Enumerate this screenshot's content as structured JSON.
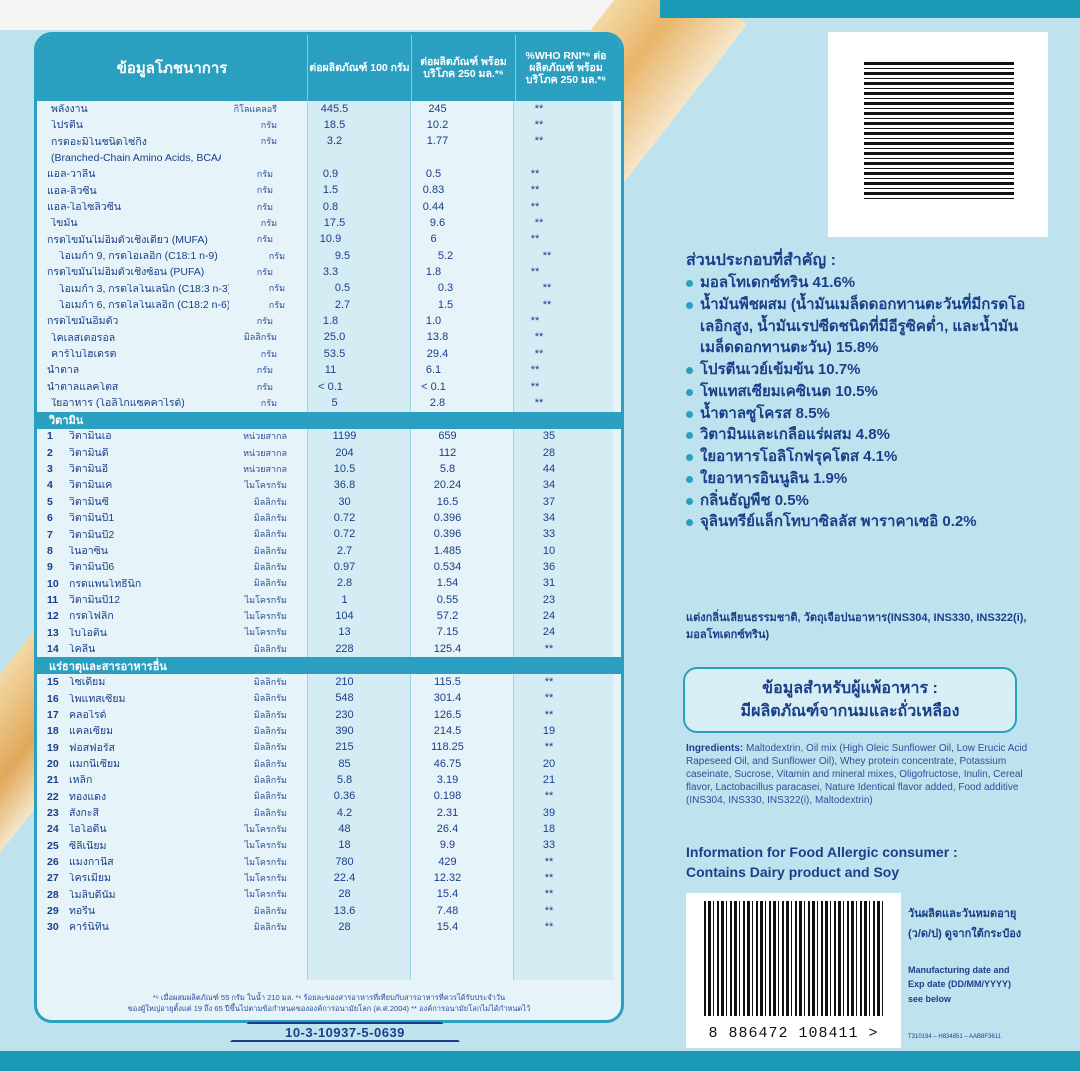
{
  "nutrition": {
    "header": {
      "title": "ข้อมูลโภชนาการ",
      "col1": "ต่อผลิตภัณฑ์ 100 กรัม",
      "col2": "ต่อผลิตภัณฑ์ พร้อมบริโภค 250 มล.*⁶",
      "col3": "%WHO RNI*⁶ ต่อผลิตภัณฑ์ พร้อมบริโภค 250 มล.*⁶"
    },
    "macros": [
      {
        "name": "พลังงาน",
        "unit": "กิโลแคลอรี",
        "v1": "445.5",
        "v2": "245",
        "v3": "**",
        "indent": 0
      },
      {
        "name": "โปรตีน",
        "unit": "กรัม",
        "v1": "18.5",
        "v2": "10.2",
        "v3": "**",
        "indent": 0
      },
      {
        "name": "กรดอะมิโนชนิดโซ่กิ่ง",
        "unit": "กรัม",
        "v1": "3.2",
        "v2": "1.77",
        "v3": "**",
        "indent": 0
      },
      {
        "name": "(Branched-Chain Amino Acids, BCAAs)",
        "unit": "",
        "v1": "",
        "v2": "",
        "v3": "",
        "indent": 0
      },
      {
        "name": "แอล-วาลีน",
        "unit": "กรัม",
        "v1": "0.9",
        "v2": "0.5",
        "v3": "**",
        "indent": 1
      },
      {
        "name": "แอล-ลิวซีน",
        "unit": "กรัม",
        "v1": "1.5",
        "v2": "0.83",
        "v3": "**",
        "indent": 1
      },
      {
        "name": "แอล-ไอโซลิวซีน",
        "unit": "กรัม",
        "v1": "0.8",
        "v2": "0.44",
        "v3": "**",
        "indent": 1
      },
      {
        "name": "ไขมัน",
        "unit": "กรัม",
        "v1": "17.5",
        "v2": "9.6",
        "v3": "**",
        "indent": 0
      },
      {
        "name": "กรดไขมันไม่อิ่มตัวเชิงเดี่ยว (MUFA)",
        "unit": "กรัม",
        "v1": "10.9",
        "v2": "6",
        "v3": "**",
        "indent": 1
      },
      {
        "name": "โอเมก้า 9, กรดโอเลอิก (C18:1 n-9)",
        "unit": "กรัม",
        "v1": "9.5",
        "v2": "5.2",
        "v3": "**",
        "indent": 2
      },
      {
        "name": "กรดไขมันไม่อิ่มตัวเชิงซ้อน (PUFA)",
        "unit": "กรัม",
        "v1": "3.3",
        "v2": "1.8",
        "v3": "**",
        "indent": 1
      },
      {
        "name": "โอเมก้า 3, กรดไลโนเลนิก (C18:3 n-3)",
        "unit": "กรัม",
        "v1": "0.5",
        "v2": "0.3",
        "v3": "**",
        "indent": 2
      },
      {
        "name": "โอเมก้า 6, กรดไลโนเลอิก (C18:2 n-6)",
        "unit": "กรัม",
        "v1": "2.7",
        "v2": "1.5",
        "v3": "**",
        "indent": 2
      },
      {
        "name": "กรดไขมันอิ่มตัว",
        "unit": "กรัม",
        "v1": "1.8",
        "v2": "1.0",
        "v3": "**",
        "indent": 1
      },
      {
        "name": "โคเลสเตอรอล",
        "unit": "มิลลิกรัม",
        "v1": "25.0",
        "v2": "13.8",
        "v3": "**",
        "indent": 0
      },
      {
        "name": "คาร์โบไฮเดรต",
        "unit": "กรัม",
        "v1": "53.5",
        "v2": "29.4",
        "v3": "**",
        "indent": 0
      },
      {
        "name": "น้ำตาล",
        "unit": "กรัม",
        "v1": "11",
        "v2": "6.1",
        "v3": "**",
        "indent": 1
      },
      {
        "name": "น้ำตาลแลคโตส",
        "unit": "กรัม",
        "v1": "< 0.1",
        "v2": "< 0.1",
        "v3": "**",
        "indent": 1
      },
      {
        "name": "ใยอาหาร (โอลิโกแซคคาไรด์)",
        "unit": "กรัม",
        "v1": "5",
        "v2": "2.8",
        "v3": "**",
        "indent": 0
      }
    ],
    "vitamins_title": "วิตามิน",
    "vitamins": [
      {
        "num": "1",
        "name": "วิตามินเอ",
        "unit": "หน่วยสากล",
        "v1": "1199",
        "v2": "659",
        "v3": "35"
      },
      {
        "num": "2",
        "name": "วิตามินดี",
        "unit": "หน่วยสากล",
        "v1": "204",
        "v2": "112",
        "v3": "28"
      },
      {
        "num": "3",
        "name": "วิตามินอี",
        "unit": "หน่วยสากล",
        "v1": "10.5",
        "v2": "5.8",
        "v3": "44"
      },
      {
        "num": "4",
        "name": "วิตามินเค",
        "unit": "ไมโครกรัม",
        "v1": "36.8",
        "v2": "20.24",
        "v3": "34"
      },
      {
        "num": "5",
        "name": "วิตามินซี",
        "unit": "มิลลิกรัม",
        "v1": "30",
        "v2": "16.5",
        "v3": "37"
      },
      {
        "num": "6",
        "name": "วิตามินบี1",
        "unit": "มิลลิกรัม",
        "v1": "0.72",
        "v2": "0.396",
        "v3": "34"
      },
      {
        "num": "7",
        "name": "วิตามินบี2",
        "unit": "มิลลิกรัม",
        "v1": "0.72",
        "v2": "0.396",
        "v3": "33"
      },
      {
        "num": "8",
        "name": "ไนอาซิน",
        "unit": "มิลลิกรัม",
        "v1": "2.7",
        "v2": "1.485",
        "v3": "10"
      },
      {
        "num": "9",
        "name": "วิตามินบี6",
        "unit": "มิลลิกรัม",
        "v1": "0.97",
        "v2": "0.534",
        "v3": "36"
      },
      {
        "num": "10",
        "name": "กรดแพนโทธีนิก",
        "unit": "มิลลิกรัม",
        "v1": "2.8",
        "v2": "1.54",
        "v3": "31"
      },
      {
        "num": "11",
        "name": "วิตามินบี12",
        "unit": "ไมโครกรัม",
        "v1": "1",
        "v2": "0.55",
        "v3": "23"
      },
      {
        "num": "12",
        "name": "กรดโฟลิก",
        "unit": "ไมโครกรัม",
        "v1": "104",
        "v2": "57.2",
        "v3": "24"
      },
      {
        "num": "13",
        "name": "ไบโอติน",
        "unit": "ไมโครกรัม",
        "v1": "13",
        "v2": "7.15",
        "v3": "24"
      },
      {
        "num": "14",
        "name": "โคลีน",
        "unit": "มิลลิกรัม",
        "v1": "228",
        "v2": "125.4",
        "v3": "**"
      }
    ],
    "minerals_title": "แร่ธาตุและสารอาหารอื่น",
    "minerals": [
      {
        "num": "15",
        "name": "โซเดียม",
        "unit": "มิลลิกรัม",
        "v1": "210",
        "v2": "115.5",
        "v3": "**"
      },
      {
        "num": "16",
        "name": "โพแทสเซียม",
        "unit": "มิลลิกรัม",
        "v1": "548",
        "v2": "301.4",
        "v3": "**"
      },
      {
        "num": "17",
        "name": "คลอไรด์",
        "unit": "มิลลิกรัม",
        "v1": "230",
        "v2": "126.5",
        "v3": "**"
      },
      {
        "num": "18",
        "name": "แคลเซียม",
        "unit": "มิลลิกรัม",
        "v1": "390",
        "v2": "214.5",
        "v3": "19"
      },
      {
        "num": "19",
        "name": "ฟอสฟอรัส",
        "unit": "มิลลิกรัม",
        "v1": "215",
        "v2": "118.25",
        "v3": "**"
      },
      {
        "num": "20",
        "name": "แมกนีเซียม",
        "unit": "มิลลิกรัม",
        "v1": "85",
        "v2": "46.75",
        "v3": "20"
      },
      {
        "num": "21",
        "name": "เหล็ก",
        "unit": "มิลลิกรัม",
        "v1": "5.8",
        "v2": "3.19",
        "v3": "21"
      },
      {
        "num": "22",
        "name": "ทองแดง",
        "unit": "มิลลิกรัม",
        "v1": "0.36",
        "v2": "0.198",
        "v3": "**"
      },
      {
        "num": "23",
        "name": "สังกะสี",
        "unit": "มิลลิกรัม",
        "v1": "4.2",
        "v2": "2.31",
        "v3": "39"
      },
      {
        "num": "24",
        "name": "ไอโอดีน",
        "unit": "ไมโครกรัม",
        "v1": "48",
        "v2": "26.4",
        "v3": "18"
      },
      {
        "num": "25",
        "name": "ซีลีเนียม",
        "unit": "ไมโครกรัม",
        "v1": "18",
        "v2": "9.9",
        "v3": "33"
      },
      {
        "num": "26",
        "name": "แมงกานีส",
        "unit": "ไมโครกรัม",
        "v1": "780",
        "v2": "429",
        "v3": "**"
      },
      {
        "num": "27",
        "name": "โครเมียม",
        "unit": "ไมโครกรัม",
        "v1": "22.4",
        "v2": "12.32",
        "v3": "**"
      },
      {
        "num": "28",
        "name": "โมลิบดีนัม",
        "unit": "ไมโครกรัม",
        "v1": "28",
        "v2": "15.4",
        "v3": "**"
      },
      {
        "num": "29",
        "name": "ทอรีน",
        "unit": "มิลลิกรัม",
        "v1": "13.6",
        "v2": "7.48",
        "v3": "**"
      },
      {
        "num": "30",
        "name": "คาร์นิทีน",
        "unit": "มิลลิกรัม",
        "v1": "28",
        "v2": "15.4",
        "v3": "**"
      }
    ],
    "footnote1": "*⁶ เมื่อผสมผลิตภัณฑ์ 55 กรัม ในน้ำ 210 มล. *⁶ ร้อยละของสารอาหารที่เทียบกับสารอาหารที่ควรได้รับประจำวัน",
    "footnote2": "ของผู้ใหญ่อายุตั้งแต่ 19 ถึง 65 ปีขึ้นไปตามข้อกำหนดขององค์การอนามัยโลก (ค.ศ.2004) ** องค์การอนามัยโลกไม่ได้กำหนดไว้",
    "registration": "10-3-10937-5-0639"
  },
  "ingredients_th": {
    "title": "ส่วนประกอบที่สำคัญ :",
    "items": [
      "มอลโทเดกซ์ทริน 41.6%",
      "น้ำมันพืชผสม (น้ำมันเมล็ดดอกทานตะวันที่มีกรดโอเลอิกสูง, น้ำมันเรปซีดชนิดที่มีอีรูซิคต่ำ, และน้ำมันเมล็ดดอกทานตะวัน) 15.8%",
      "โปรตีนเวย์เข้มข้น 10.7%",
      "โพแทสเซียมเคซิเนต 10.5%",
      "น้ำตาลซูโครส 8.5%",
      "วิตามินและเกลือแร่ผสม 4.8%",
      "ใยอาหารโอลิโกฟรุคโตส 4.1%",
      "ใยอาหารอินนูลิน 1.9%",
      "กลิ่นธัญพืช 0.5%",
      "จุลินทรีย์แล็กโทบาซิลลัส พาราคาเซอิ 0.2%"
    ],
    "note": "แต่งกลิ่นเลียนธรรมชาติ, วัตถุเจือปนอาหาร(INS304, INS330, INS322(i), มอลโทเดกซ์ทริน)"
  },
  "allergy_th": {
    "line1": "ข้อมูลสำหรับผู้แพ้อาหาร :",
    "line2": "มีผลิตภัณฑ์จากนมและถั่วเหลือง"
  },
  "ingredients_en": {
    "label": "Ingredients:",
    "text": " Maltodextrin, Oil mix (High Oleic Sunflower Oil, Low Erucic Acid Rapeseed Oil, and Sunflower Oil), Whey protein concentrate, Potassium caseinate, Sucrose, Vitamin and mineral mixes, Oligofructose, Inulin, Cereal flavor, Lactobacillus paracasei, Nature Identical flavor added, Food additive (INS304, INS330, INS322(i), Maltodextrin)"
  },
  "allergy_en": {
    "line1": "Information for Food Allergic consumer :",
    "line2": "Contains Dairy product and Soy"
  },
  "barcode": {
    "number": "8 886472 108411 >"
  },
  "date_info": {
    "th1": "วันผลิตและวันหมดอายุ",
    "th2": "(ว/ด/ป) ดูจากใต้กระป๋อง",
    "en1": "Manufacturing date and",
    "en2": "Exp date (DD/MM/YYYY)",
    "en3": "see below",
    "code": "T310194 – H834851 – AAB8F3611"
  },
  "colors": {
    "accent": "#2a9fc0",
    "text": "#1a3f8a"
  }
}
